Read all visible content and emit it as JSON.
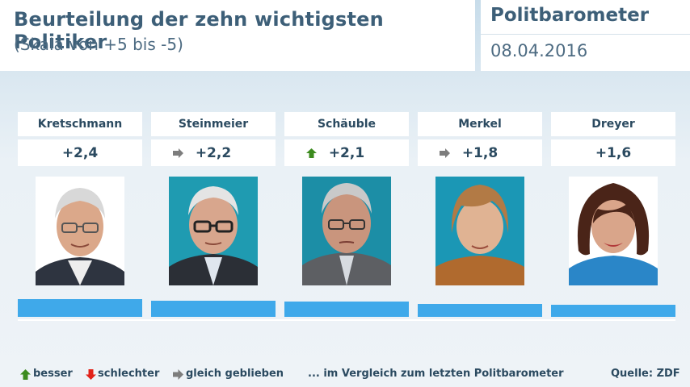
{
  "header": {
    "title": "Beurteilung der zehn wichtigsten Politiker",
    "subtitle": "(Skala von +5 bis -5)",
    "brand": "Politbarometer",
    "date": "08.04.2016"
  },
  "colors": {
    "bar": "#3fa9ea",
    "up": "#3c8b1e",
    "down": "#e2231a",
    "same": "#7d7d7d",
    "text": "#2b4a60"
  },
  "chart_data": {
    "type": "bar",
    "categories": [
      "Kretschmann",
      "Steinmeier",
      "Schäuble",
      "Merkel",
      "Dreyer"
    ],
    "values": [
      2.4,
      2.2,
      2.1,
      1.8,
      1.6
    ],
    "value_labels": [
      "+2,4",
      "+2,2",
      "+2,1",
      "+1,8",
      "+1,6"
    ],
    "trend": [
      "none",
      "same",
      "up",
      "same",
      "none"
    ],
    "ylim": [
      -5,
      5
    ]
  },
  "legend": {
    "better": "besser",
    "worse": "schlechter",
    "same": "gleich geblieben",
    "comparison_note": "... im Vergleich zum letzten Politbarometer"
  },
  "source": "Quelle: ZDF"
}
